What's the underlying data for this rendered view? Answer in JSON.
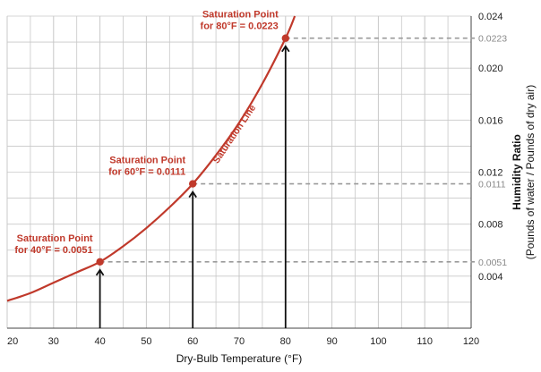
{
  "chart_data": {
    "type": "line",
    "title": "",
    "xlabel": "Dry-Bulb Temperature (°F)",
    "ylabel": "Humidity Ratio",
    "ylabel_sub": "(Pounds of water / Pounds of dry air)",
    "xlim": [
      20,
      120
    ],
    "ylim": [
      0,
      0.024
    ],
    "x_ticks": [
      "20",
      "30",
      "40",
      "50",
      "60",
      "70",
      "80",
      "90",
      "100",
      "110",
      "120"
    ],
    "y_ticks": [
      {
        "value": 0.004,
        "label": "0.004"
      },
      {
        "value": 0.008,
        "label": "0.008"
      },
      {
        "value": 0.012,
        "label": "0.012"
      },
      {
        "value": 0.016,
        "label": "0.016"
      },
      {
        "value": 0.02,
        "label": "0.020"
      },
      {
        "value": 0.024,
        "label": "0.024"
      }
    ],
    "grid": true,
    "series": [
      {
        "name": "Saturation Line",
        "color": "#c0392b",
        "x": [
          20,
          25,
          30,
          35,
          40,
          45,
          50,
          55,
          60,
          65,
          70,
          75,
          80,
          82
        ],
        "y": [
          0.0021,
          0.0027,
          0.0035,
          0.0043,
          0.0051,
          0.0063,
          0.0077,
          0.0093,
          0.0111,
          0.0133,
          0.0158,
          0.0188,
          0.0223,
          0.024
        ]
      }
    ],
    "saturation_points": [
      {
        "x": 40,
        "y": 0.0051,
        "value_label": "0.0051",
        "label_line1": "Saturation Point",
        "label_line2": "for 40°F = 0.0051"
      },
      {
        "x": 60,
        "y": 0.0111,
        "value_label": "0.0111",
        "label_line1": "Saturation Point",
        "label_line2": "for 60°F = 0.0111"
      },
      {
        "x": 80,
        "y": 0.0223,
        "value_label": "0.0223",
        "label_line1": "Saturation Point",
        "label_line2": "for 80°F = 0.0223"
      }
    ],
    "colors": {
      "curve": "#c0392b",
      "annotation": "#c0392b",
      "grid": "#c8c8c8",
      "dash": "#9a9a9a",
      "arrow": "#111111"
    }
  }
}
